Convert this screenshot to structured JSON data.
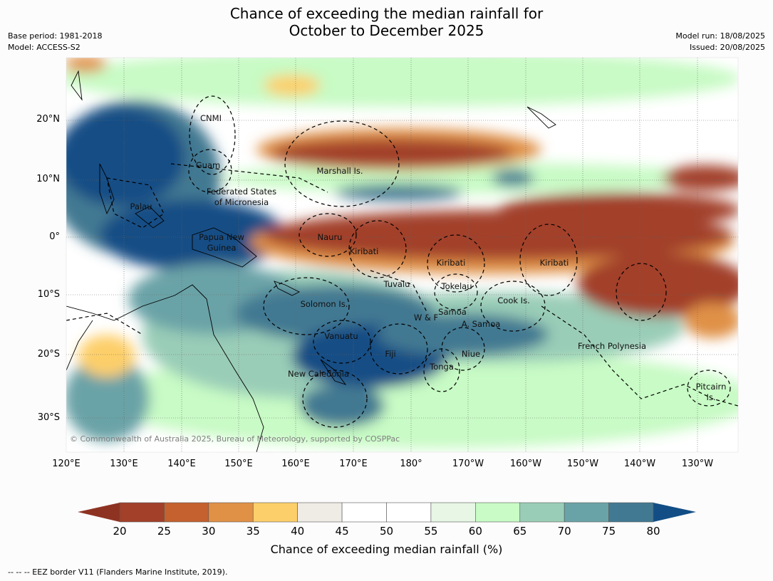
{
  "title_line1": "Chance of exceeding the median rainfall for",
  "title_line2": "October to December 2025",
  "base_period": "Base period: 1981-2018",
  "model": "Model: ACCESS-S2",
  "model_run": "Model run: 18/08/2025",
  "issued": "Issued: 20/08/2025",
  "copyright": "© Commonwealth of Australia 2025, Bureau of Meteorology, supported by COSPPac",
  "footer_note": "-- -- -- EEZ border V11 (Flanders Marine Institute, 2019).",
  "lat_labels": [
    "20°N",
    "10°N",
    "0°",
    "10°S",
    "20°S",
    "30°S"
  ],
  "lon_labels": [
    "120°E",
    "130°E",
    "140°E",
    "150°E",
    "160°E",
    "170°E",
    "180°",
    "170°W",
    "160°W",
    "150°W",
    "140°W",
    "130°W"
  ],
  "colorbar": {
    "label": "Chance of exceeding median rainfall (%)",
    "ticks": [
      "20",
      "25",
      "30",
      "35",
      "40",
      "45",
      "50",
      "55",
      "60",
      "65",
      "70",
      "75",
      "80"
    ],
    "colors": [
      "#a2402a",
      "#c4612f",
      "#e09146",
      "#fdcf6a",
      "#efece6",
      "#ffffff",
      "#ffffff",
      "#e7f6e5",
      "#c8fbc5",
      "#9acdb7",
      "#6aa3a7",
      "#427992"
    ],
    "low_color": "#8e3322",
    "high_color": "#124e85"
  },
  "places": [
    {
      "name": "CNMI"
    },
    {
      "name": "Guam"
    },
    {
      "name": "Marshall Is."
    },
    {
      "name": "Federated States"
    },
    {
      "name": "of Micronesia"
    },
    {
      "name": "Palau"
    },
    {
      "name": "Papua New"
    },
    {
      "name": "Guinea"
    },
    {
      "name": "Nauru"
    },
    {
      "name": "Kiribati"
    },
    {
      "name": "Kiribati"
    },
    {
      "name": "Kiribati"
    },
    {
      "name": "Tuvalu"
    },
    {
      "name": "Tokelau"
    },
    {
      "name": "Cook Is."
    },
    {
      "name": "Solomon Is."
    },
    {
      "name": "W & F"
    },
    {
      "name": "Samoa"
    },
    {
      "name": "A. Samoa"
    },
    {
      "name": "Vanuatu"
    },
    {
      "name": "Fiji"
    },
    {
      "name": "Niue"
    },
    {
      "name": "French Polynesia"
    },
    {
      "name": "Tonga"
    },
    {
      "name": "New Caledonia"
    },
    {
      "name": "Pitcairn"
    },
    {
      "name": "Is."
    }
  ]
}
